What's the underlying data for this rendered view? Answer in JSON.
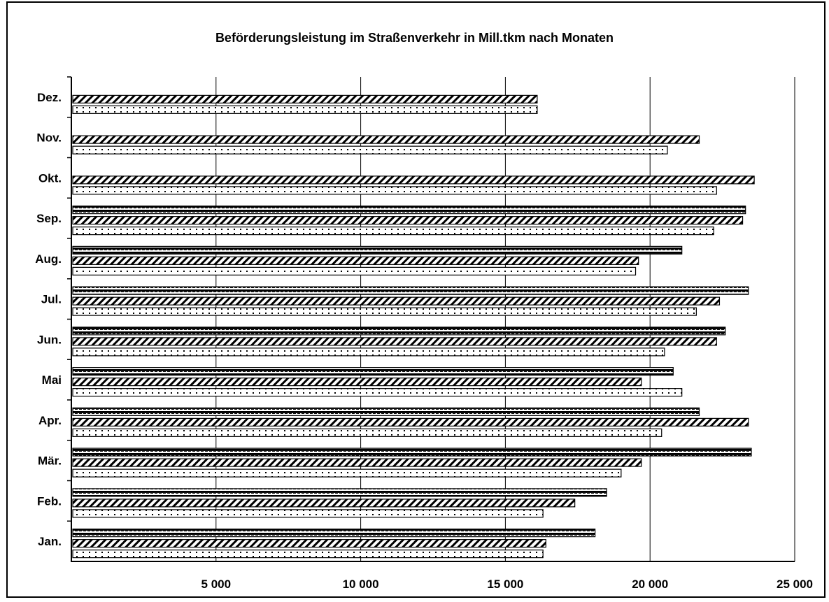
{
  "chart_data": {
    "type": "bar",
    "orientation": "horizontal",
    "title": "Beförderungsleistung im Straßenverkehr in Mill.tkm nach Monaten",
    "xlabel": "",
    "ylabel": "",
    "categories": [
      "Jan.",
      "Feb.",
      "Mär.",
      "Apr.",
      "Mai",
      "Jun.",
      "Jul.",
      "Aug.",
      "Sep.",
      "Okt.",
      "Nov.",
      "Dez."
    ],
    "xlim": [
      0,
      25000
    ],
    "x_ticks": [
      5000,
      10000,
      15000,
      20000,
      25000
    ],
    "x_tick_labels": [
      "5 000",
      "10 000",
      "15 000",
      "20 000",
      "25 000"
    ],
    "grid": "vertical",
    "legend": "none",
    "series": [
      {
        "pattern": "dotted-light",
        "values": [
          16300,
          16300,
          19000,
          20400,
          21100,
          20500,
          21600,
          19500,
          22200,
          22300,
          20600,
          16100
        ]
      },
      {
        "pattern": "hatched",
        "values": [
          16400,
          17400,
          19700,
          23400,
          19700,
          22300,
          22400,
          19600,
          23200,
          23600,
          21700,
          16100
        ]
      },
      {
        "pattern": "dashed-dark",
        "values": [
          18100,
          18500,
          23500,
          21700,
          20800,
          22600,
          23400,
          21100,
          23300,
          null,
          null,
          null
        ]
      }
    ]
  }
}
